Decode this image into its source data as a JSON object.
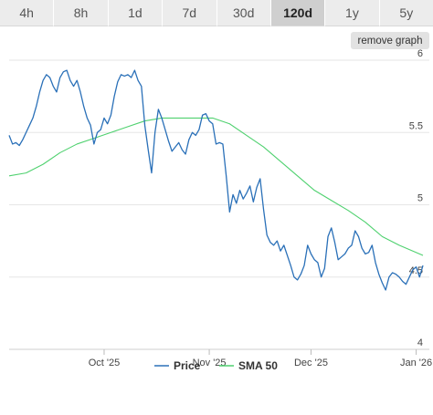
{
  "tabs": [
    {
      "label": "4h",
      "active": false
    },
    {
      "label": "8h",
      "active": false
    },
    {
      "label": "1d",
      "active": false
    },
    {
      "label": "7d",
      "active": false
    },
    {
      "label": "30d",
      "active": false
    },
    {
      "label": "120d",
      "active": true
    },
    {
      "label": "1y",
      "active": false
    },
    {
      "label": "5y",
      "active": false
    }
  ],
  "remove_graph_label": "remove graph",
  "chart_data": {
    "type": "line",
    "title": "",
    "xlabel": "",
    "ylabel": "",
    "ylim": [
      4,
      6
    ],
    "yticks": [
      {
        "value": 4,
        "label": "4"
      },
      {
        "value": 4.5,
        "label": "4.5"
      },
      {
        "value": 5,
        "label": "5"
      },
      {
        "value": 5.5,
        "label": "5.5"
      },
      {
        "value": 6,
        "label": "6"
      }
    ],
    "x_range": [
      "2025-09-03",
      "2026-01-03"
    ],
    "xticks": [
      {
        "date": "2025-10-01",
        "label": "Oct '25"
      },
      {
        "date": "2025-11-01",
        "label": "Nov '25"
      },
      {
        "date": "2025-12-01",
        "label": "Dec '25"
      },
      {
        "date": "2026-01-01",
        "label": "Jan '26"
      }
    ],
    "grid": true,
    "legend_position": "bottom",
    "series": [
      {
        "name": "Price",
        "color": "#2a70b8",
        "points": [
          [
            "2025-09-03",
            5.48
          ],
          [
            "2025-09-04",
            5.42
          ],
          [
            "2025-09-05",
            5.43
          ],
          [
            "2025-09-06",
            5.41
          ],
          [
            "2025-09-07",
            5.45
          ],
          [
            "2025-09-08",
            5.5
          ],
          [
            "2025-09-09",
            5.55
          ],
          [
            "2025-09-10",
            5.6
          ],
          [
            "2025-09-11",
            5.68
          ],
          [
            "2025-09-12",
            5.78
          ],
          [
            "2025-09-13",
            5.86
          ],
          [
            "2025-09-14",
            5.9
          ],
          [
            "2025-09-15",
            5.88
          ],
          [
            "2025-09-16",
            5.82
          ],
          [
            "2025-09-17",
            5.78
          ],
          [
            "2025-09-18",
            5.88
          ],
          [
            "2025-09-19",
            5.92
          ],
          [
            "2025-09-20",
            5.93
          ],
          [
            "2025-09-21",
            5.86
          ],
          [
            "2025-09-22",
            5.82
          ],
          [
            "2025-09-23",
            5.86
          ],
          [
            "2025-09-24",
            5.78
          ],
          [
            "2025-09-25",
            5.68
          ],
          [
            "2025-09-26",
            5.6
          ],
          [
            "2025-09-27",
            5.55
          ],
          [
            "2025-09-28",
            5.42
          ],
          [
            "2025-09-29",
            5.5
          ],
          [
            "2025-09-30",
            5.52
          ],
          [
            "2025-10-01",
            5.6
          ],
          [
            "2025-10-02",
            5.56
          ],
          [
            "2025-10-03",
            5.62
          ],
          [
            "2025-10-04",
            5.75
          ],
          [
            "2025-10-05",
            5.85
          ],
          [
            "2025-10-06",
            5.9
          ],
          [
            "2025-10-07",
            5.89
          ],
          [
            "2025-10-08",
            5.9
          ],
          [
            "2025-10-09",
            5.88
          ],
          [
            "2025-10-10",
            5.93
          ],
          [
            "2025-10-11",
            5.86
          ],
          [
            "2025-10-12",
            5.82
          ],
          [
            "2025-10-13",
            5.55
          ],
          [
            "2025-10-14",
            5.38
          ],
          [
            "2025-10-15",
            5.22
          ],
          [
            "2025-10-16",
            5.5
          ],
          [
            "2025-10-17",
            5.66
          ],
          [
            "2025-10-18",
            5.6
          ],
          [
            "2025-10-19",
            5.52
          ],
          [
            "2025-10-20",
            5.44
          ],
          [
            "2025-10-21",
            5.37
          ],
          [
            "2025-10-22",
            5.4
          ],
          [
            "2025-10-23",
            5.43
          ],
          [
            "2025-10-24",
            5.38
          ],
          [
            "2025-10-25",
            5.35
          ],
          [
            "2025-10-26",
            5.45
          ],
          [
            "2025-10-27",
            5.5
          ],
          [
            "2025-10-28",
            5.48
          ],
          [
            "2025-10-29",
            5.52
          ],
          [
            "2025-10-30",
            5.62
          ],
          [
            "2025-10-31",
            5.63
          ],
          [
            "2025-11-01",
            5.58
          ],
          [
            "2025-11-02",
            5.56
          ],
          [
            "2025-11-03",
            5.42
          ],
          [
            "2025-11-04",
            5.43
          ],
          [
            "2025-11-05",
            5.42
          ],
          [
            "2025-11-06",
            5.2
          ],
          [
            "2025-11-07",
            4.95
          ],
          [
            "2025-11-08",
            5.07
          ],
          [
            "2025-11-09",
            5.01
          ],
          [
            "2025-11-10",
            5.1
          ],
          [
            "2025-11-11",
            5.04
          ],
          [
            "2025-11-12",
            5.08
          ],
          [
            "2025-11-13",
            5.13
          ],
          [
            "2025-11-14",
            5.02
          ],
          [
            "2025-11-15",
            5.12
          ],
          [
            "2025-11-16",
            5.18
          ],
          [
            "2025-11-17",
            4.97
          ],
          [
            "2025-11-18",
            4.79
          ],
          [
            "2025-11-19",
            4.74
          ],
          [
            "2025-11-20",
            4.72
          ],
          [
            "2025-11-21",
            4.75
          ],
          [
            "2025-11-22",
            4.68
          ],
          [
            "2025-11-23",
            4.72
          ],
          [
            "2025-11-24",
            4.65
          ],
          [
            "2025-11-25",
            4.58
          ],
          [
            "2025-11-26",
            4.5
          ],
          [
            "2025-11-27",
            4.48
          ],
          [
            "2025-11-28",
            4.52
          ],
          [
            "2025-11-29",
            4.58
          ],
          [
            "2025-11-30",
            4.72
          ],
          [
            "2025-12-01",
            4.66
          ],
          [
            "2025-12-02",
            4.62
          ],
          [
            "2025-12-03",
            4.6
          ],
          [
            "2025-12-04",
            4.5
          ],
          [
            "2025-12-05",
            4.56
          ],
          [
            "2025-12-06",
            4.78
          ],
          [
            "2025-12-07",
            4.84
          ],
          [
            "2025-12-08",
            4.74
          ],
          [
            "2025-12-09",
            4.62
          ],
          [
            "2025-12-10",
            4.64
          ],
          [
            "2025-12-11",
            4.66
          ],
          [
            "2025-12-12",
            4.7
          ],
          [
            "2025-12-13",
            4.72
          ],
          [
            "2025-12-14",
            4.82
          ],
          [
            "2025-12-15",
            4.78
          ],
          [
            "2025-12-16",
            4.7
          ],
          [
            "2025-12-17",
            4.66
          ],
          [
            "2025-12-18",
            4.67
          ],
          [
            "2025-12-19",
            4.72
          ],
          [
            "2025-12-20",
            4.6
          ],
          [
            "2025-12-21",
            4.52
          ],
          [
            "2025-12-22",
            4.46
          ],
          [
            "2025-12-23",
            4.41
          ],
          [
            "2025-12-24",
            4.5
          ],
          [
            "2025-12-25",
            4.53
          ],
          [
            "2025-12-26",
            4.52
          ],
          [
            "2025-12-27",
            4.5
          ],
          [
            "2025-12-28",
            4.47
          ],
          [
            "2025-12-29",
            4.45
          ],
          [
            "2025-12-30",
            4.5
          ],
          [
            "2025-12-31",
            4.55
          ],
          [
            "2026-01-01",
            4.57
          ],
          [
            "2026-01-02",
            4.5
          ],
          [
            "2026-01-03",
            4.58
          ]
        ]
      },
      {
        "name": "SMA 50",
        "color": "#4fd16f",
        "points": [
          [
            "2025-09-03",
            5.2
          ],
          [
            "2025-09-08",
            5.22
          ],
          [
            "2025-09-13",
            5.28
          ],
          [
            "2025-09-18",
            5.36
          ],
          [
            "2025-09-23",
            5.42
          ],
          [
            "2025-09-28",
            5.46
          ],
          [
            "2025-10-03",
            5.5
          ],
          [
            "2025-10-08",
            5.54
          ],
          [
            "2025-10-13",
            5.58
          ],
          [
            "2025-10-18",
            5.6
          ],
          [
            "2025-10-23",
            5.6
          ],
          [
            "2025-10-28",
            5.6
          ],
          [
            "2025-11-02",
            5.6
          ],
          [
            "2025-11-07",
            5.56
          ],
          [
            "2025-11-12",
            5.48
          ],
          [
            "2025-11-17",
            5.4
          ],
          [
            "2025-11-22",
            5.3
          ],
          [
            "2025-11-27",
            5.2
          ],
          [
            "2025-12-02",
            5.1
          ],
          [
            "2025-12-07",
            5.03
          ],
          [
            "2025-12-12",
            4.96
          ],
          [
            "2025-12-17",
            4.88
          ],
          [
            "2025-12-22",
            4.78
          ],
          [
            "2025-12-27",
            4.72
          ],
          [
            "2026-01-03",
            4.65
          ]
        ]
      }
    ]
  }
}
